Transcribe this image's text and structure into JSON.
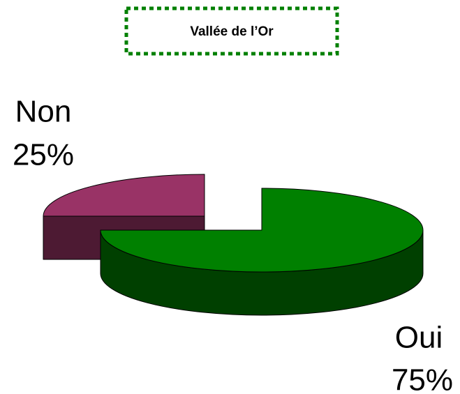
{
  "chart_data": {
    "type": "pie3d",
    "title": "Vallée de l’Or",
    "categories": [
      "Non",
      "Oui"
    ],
    "values": [
      25,
      75
    ],
    "value_labels": [
      "25%",
      "75%"
    ],
    "colors": [
      "#993366",
      "#008000"
    ]
  }
}
